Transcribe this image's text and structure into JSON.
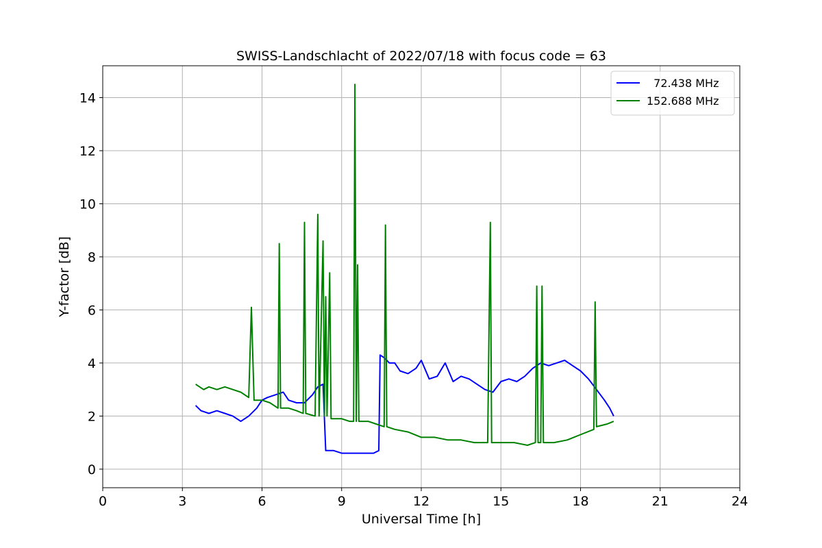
{
  "chart_data": {
    "type": "line",
    "title": "SWISS-Landschlacht of 2022/07/18 with focus code = 63",
    "xlabel": "Universal Time [h]",
    "ylabel": "Y-factor [dB]",
    "xlim": [
      0,
      24
    ],
    "ylim": [
      -0.7,
      15.2
    ],
    "xticks": [
      0,
      3,
      6,
      9,
      12,
      15,
      18,
      21,
      24
    ],
    "yticks": [
      0,
      2,
      4,
      6,
      8,
      10,
      12,
      14
    ],
    "grid": true,
    "legend_position": "top-right",
    "series": [
      {
        "name": "  72.438 MHz",
        "color": "#0000ff",
        "x": [
          3.5,
          3.7,
          4.0,
          4.3,
          4.6,
          4.9,
          5.2,
          5.5,
          5.8,
          6.0,
          6.2,
          6.5,
          6.8,
          7.0,
          7.3,
          7.6,
          7.9,
          8.1,
          8.3,
          8.4,
          8.7,
          9.0,
          9.3,
          9.6,
          9.9,
          10.2,
          10.4,
          10.45,
          10.6,
          10.8,
          11.0,
          11.2,
          11.5,
          11.8,
          12.0,
          12.3,
          12.6,
          12.9,
          13.2,
          13.5,
          13.8,
          14.1,
          14.4,
          14.7,
          15.0,
          15.3,
          15.6,
          15.9,
          16.2,
          16.5,
          16.8,
          17.1,
          17.4,
          17.7,
          18.0,
          18.3,
          18.6,
          18.9,
          19.1,
          19.25
        ],
        "y": [
          2.4,
          2.2,
          2.1,
          2.2,
          2.1,
          2.0,
          1.8,
          2.0,
          2.3,
          2.6,
          2.7,
          2.8,
          2.9,
          2.6,
          2.5,
          2.5,
          2.8,
          3.1,
          3.2,
          0.7,
          0.7,
          0.6,
          0.6,
          0.6,
          0.6,
          0.6,
          0.7,
          4.3,
          4.2,
          4.0,
          4.0,
          3.7,
          3.6,
          3.8,
          4.1,
          3.4,
          3.5,
          4.0,
          3.3,
          3.5,
          3.4,
          3.2,
          3.0,
          2.9,
          3.3,
          3.4,
          3.3,
          3.5,
          3.8,
          4.0,
          3.9,
          4.0,
          4.1,
          3.9,
          3.7,
          3.4,
          3.0,
          2.6,
          2.3,
          2.0
        ]
      },
      {
        "name": "152.688 MHz",
        "color": "#008000",
        "x": [
          3.5,
          3.8,
          4.0,
          4.3,
          4.6,
          4.9,
          5.2,
          5.5,
          5.6,
          5.7,
          6.0,
          6.3,
          6.6,
          6.65,
          6.7,
          7.0,
          7.3,
          7.55,
          7.6,
          7.65,
          8.0,
          8.1,
          8.15,
          8.3,
          8.35,
          8.4,
          8.45,
          8.55,
          8.6,
          8.65,
          9.0,
          9.3,
          9.45,
          9.5,
          9.55,
          9.6,
          9.65,
          9.7,
          10.0,
          10.3,
          10.6,
          10.65,
          10.7,
          11.0,
          11.5,
          12.0,
          12.5,
          13.0,
          13.5,
          14.0,
          14.5,
          14.6,
          14.65,
          14.7,
          15.0,
          15.5,
          16.0,
          16.3,
          16.35,
          16.4,
          16.5,
          16.55,
          16.6,
          17.0,
          17.5,
          18.0,
          18.5,
          18.55,
          18.6,
          19.0,
          19.25
        ],
        "y": [
          3.2,
          3.0,
          3.1,
          3.0,
          3.1,
          3.0,
          2.9,
          2.7,
          6.1,
          2.6,
          2.6,
          2.5,
          2.3,
          8.5,
          2.3,
          2.3,
          2.2,
          2.1,
          9.3,
          2.1,
          2.0,
          9.6,
          2.0,
          8.6,
          2.0,
          6.5,
          2.0,
          7.4,
          1.9,
          1.9,
          1.9,
          1.8,
          1.8,
          14.5,
          1.8,
          7.7,
          1.8,
          1.8,
          1.8,
          1.7,
          1.6,
          9.2,
          1.6,
          1.5,
          1.4,
          1.2,
          1.2,
          1.1,
          1.1,
          1.0,
          1.0,
          9.3,
          1.0,
          1.0,
          1.0,
          1.0,
          0.9,
          1.0,
          6.9,
          1.0,
          1.0,
          6.9,
          1.0,
          1.0,
          1.1,
          1.3,
          1.5,
          6.3,
          1.6,
          1.7,
          1.8
        ]
      }
    ]
  }
}
